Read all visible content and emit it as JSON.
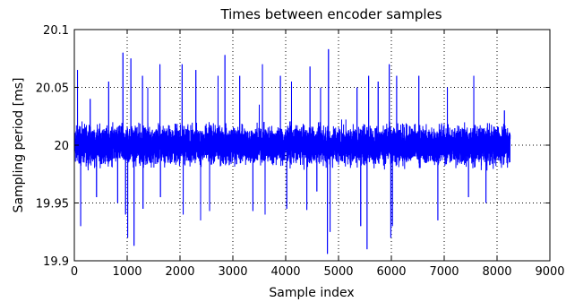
{
  "chart_data": {
    "type": "line",
    "title": "Times between encoder samples",
    "xlabel": "Sample index",
    "ylabel": "Sampling period [ms]",
    "xlim": [
      0,
      9000
    ],
    "ylim": [
      19.9,
      20.1
    ],
    "xticks": [
      0,
      1000,
      2000,
      3000,
      4000,
      5000,
      6000,
      7000,
      8000,
      9000
    ],
    "yticks": [
      19.9,
      19.95,
      20,
      20.05,
      20.1
    ],
    "xtick_labels": [
      "0",
      "1000",
      "2000",
      "3000",
      "4000",
      "5000",
      "6000",
      "7000",
      "8000",
      "9000"
    ],
    "ytick_labels": [
      "19.9",
      "19.95",
      "20",
      "20.05",
      "20.1"
    ],
    "grid": true,
    "grid_style": "dotted",
    "series": [
      {
        "color": "#0000ff",
        "n_samples": 8250,
        "mean": 20.0,
        "typical_band": [
          19.977,
          20.023
        ],
        "spikes": [
          {
            "x": 60,
            "y": 20.065
          },
          {
            "x": 120,
            "y": 19.93
          },
          {
            "x": 300,
            "y": 20.04
          },
          {
            "x": 420,
            "y": 19.955
          },
          {
            "x": 650,
            "y": 20.055
          },
          {
            "x": 820,
            "y": 19.95
          },
          {
            "x": 920,
            "y": 20.08
          },
          {
            "x": 970,
            "y": 19.94
          },
          {
            "x": 1010,
            "y": 19.92
          },
          {
            "x": 1070,
            "y": 20.075
          },
          {
            "x": 1130,
            "y": 19.913
          },
          {
            "x": 1290,
            "y": 20.06
          },
          {
            "x": 1300,
            "y": 19.945
          },
          {
            "x": 1390,
            "y": 20.05
          },
          {
            "x": 1620,
            "y": 20.07
          },
          {
            "x": 1630,
            "y": 19.955
          },
          {
            "x": 2040,
            "y": 20.07
          },
          {
            "x": 2060,
            "y": 19.94
          },
          {
            "x": 2300,
            "y": 20.065
          },
          {
            "x": 2390,
            "y": 19.935
          },
          {
            "x": 2560,
            "y": 19.943
          },
          {
            "x": 2720,
            "y": 20.06
          },
          {
            "x": 2850,
            "y": 20.078
          },
          {
            "x": 3130,
            "y": 20.06
          },
          {
            "x": 3380,
            "y": 19.943
          },
          {
            "x": 3500,
            "y": 20.035
          },
          {
            "x": 3560,
            "y": 20.07
          },
          {
            "x": 3610,
            "y": 19.94
          },
          {
            "x": 3900,
            "y": 20.06
          },
          {
            "x": 4020,
            "y": 19.945
          },
          {
            "x": 4110,
            "y": 20.055
          },
          {
            "x": 4400,
            "y": 19.944
          },
          {
            "x": 4460,
            "y": 20.068
          },
          {
            "x": 4590,
            "y": 19.96
          },
          {
            "x": 4660,
            "y": 20.05
          },
          {
            "x": 4790,
            "y": 19.906
          },
          {
            "x": 4810,
            "y": 20.083
          },
          {
            "x": 4840,
            "y": 19.925
          },
          {
            "x": 5350,
            "y": 20.05
          },
          {
            "x": 5420,
            "y": 19.93
          },
          {
            "x": 5540,
            "y": 19.91
          },
          {
            "x": 5570,
            "y": 20.06
          },
          {
            "x": 5750,
            "y": 20.055
          },
          {
            "x": 5960,
            "y": 20.07
          },
          {
            "x": 5990,
            "y": 19.92
          },
          {
            "x": 6020,
            "y": 19.93
          },
          {
            "x": 6100,
            "y": 20.06
          },
          {
            "x": 6520,
            "y": 20.06
          },
          {
            "x": 6880,
            "y": 19.935
          },
          {
            "x": 7060,
            "y": 20.05
          },
          {
            "x": 7460,
            "y": 19.955
          },
          {
            "x": 7560,
            "y": 20.06
          },
          {
            "x": 7790,
            "y": 19.95
          },
          {
            "x": 8140,
            "y": 20.03
          }
        ]
      }
    ]
  }
}
